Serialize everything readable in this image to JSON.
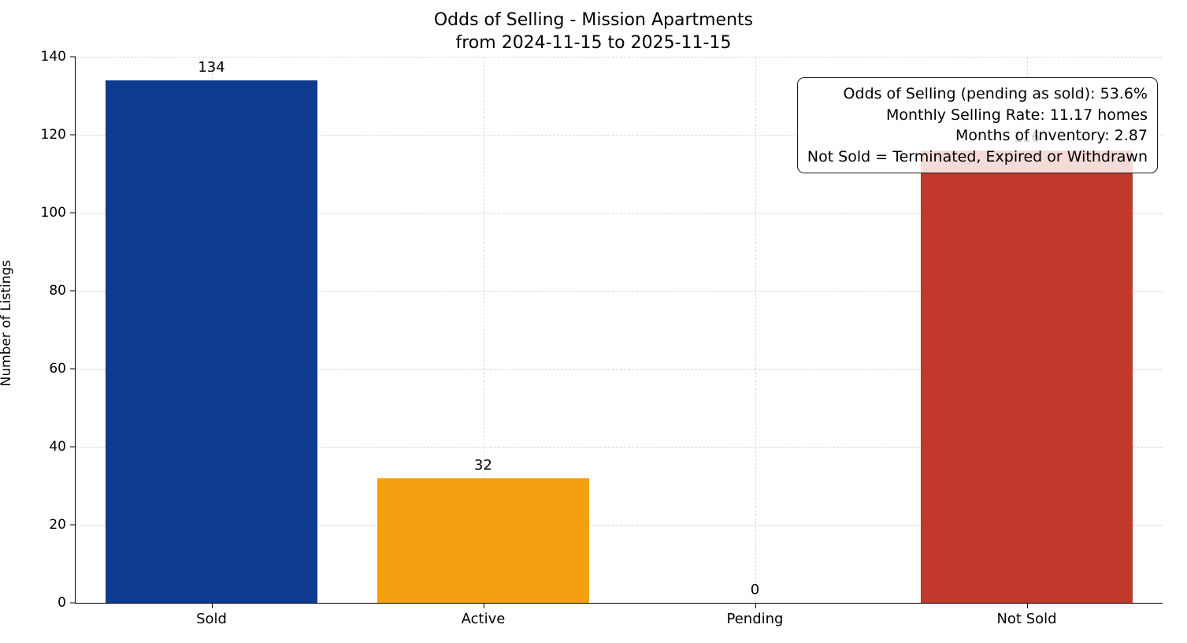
{
  "chart_data": {
    "type": "bar",
    "title_line1": "Odds of Selling - Mission Apartments",
    "title_line2": "from 2024-11-15 to 2025-11-15",
    "ylabel": "Number of Listings",
    "categories": [
      "Sold",
      "Active",
      "Pending",
      "Not Sold"
    ],
    "values": [
      134,
      32,
      0,
      116
    ],
    "colors": [
      "#0d3b8f",
      "#f4a011",
      "#999999",
      "#c0392b"
    ],
    "ylim": [
      0,
      140
    ],
    "ytick_step": 20,
    "grid": "dashed",
    "legend": "none",
    "annotation_lines": [
      "Odds of Selling (pending as sold): 53.6%",
      "Monthly Selling Rate: 11.17 homes",
      "Months of Inventory: 2.87",
      "Not Sold = Terminated, Expired or Withdrawn"
    ]
  }
}
